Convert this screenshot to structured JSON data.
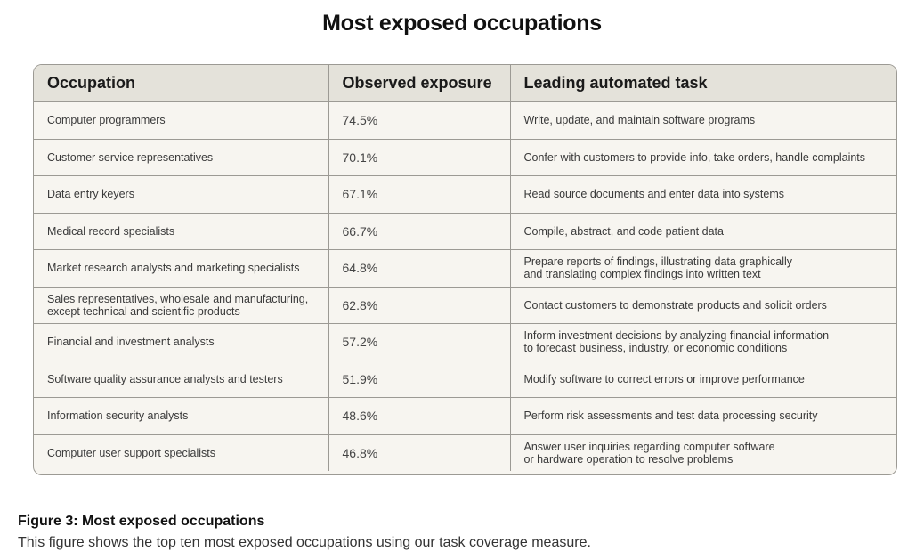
{
  "title": "Most exposed occupations",
  "table": {
    "headers": [
      "Occupation",
      "Observed exposure",
      "Leading automated task"
    ],
    "rows": [
      {
        "occupation": [
          "Computer programmers"
        ],
        "exposure": "74.5%",
        "task": [
          "Write, update, and maintain software programs"
        ]
      },
      {
        "occupation": [
          "Customer service representatives"
        ],
        "exposure": "70.1%",
        "task": [
          "Confer with customers to provide info, take orders, handle complaints"
        ]
      },
      {
        "occupation": [
          "Data entry keyers"
        ],
        "exposure": "67.1%",
        "task": [
          "Read source documents and enter data into systems"
        ]
      },
      {
        "occupation": [
          "Medical record specialists"
        ],
        "exposure": "66.7%",
        "task": [
          "Compile, abstract, and code patient data"
        ]
      },
      {
        "occupation": [
          "Market research analysts and marketing specialists"
        ],
        "exposure": "64.8%",
        "task": [
          "Prepare reports of findings, illustrating data graphically",
          "and translating complex findings into written text"
        ]
      },
      {
        "occupation": [
          "Sales representatives, wholesale and manufacturing,",
          "except technical and scientific products"
        ],
        "exposure": "62.8%",
        "task": [
          "Contact customers to demonstrate products and solicit orders"
        ]
      },
      {
        "occupation": [
          "Financial and investment analysts"
        ],
        "exposure": "57.2%",
        "task": [
          "Inform investment decisions by analyzing financial information",
          "to forecast business, industry, or economic conditions"
        ]
      },
      {
        "occupation": [
          "Software quality assurance analysts and testers"
        ],
        "exposure": "51.9%",
        "task": [
          "Modify software to correct errors or improve performance"
        ]
      },
      {
        "occupation": [
          "Information security analysts"
        ],
        "exposure": "48.6%",
        "task": [
          "Perform risk assessments and test data processing security"
        ]
      },
      {
        "occupation": [
          "Computer user support specialists"
        ],
        "exposure": "46.8%",
        "task": [
          "Answer user inquiries regarding computer software",
          "or hardware operation to resolve problems"
        ]
      }
    ]
  },
  "caption": {
    "title": "Figure 3: Most exposed occupations",
    "text": "This figure shows the top ten most exposed occupations using our task coverage measure."
  }
}
